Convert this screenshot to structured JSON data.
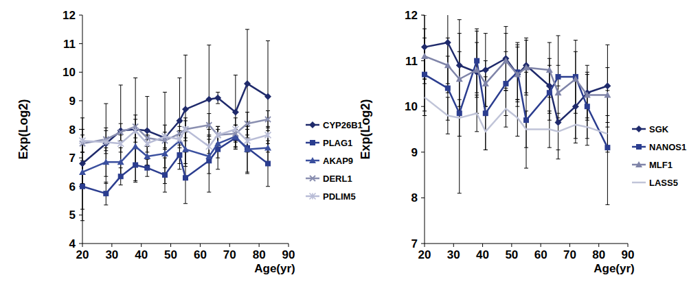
{
  "chart_data": [
    {
      "type": "line",
      "x_label": "Age(yr)",
      "y_label": "Exp(Log2)",
      "x": [
        20,
        28,
        33,
        38,
        42,
        48,
        53,
        55,
        63,
        66,
        72,
        76,
        83
      ],
      "xlim": [
        20,
        90
      ],
      "xticks": [
        20,
        30,
        40,
        50,
        60,
        70,
        80,
        90
      ],
      "ylim": [
        4,
        12
      ],
      "yticks": [
        4,
        5,
        6,
        7,
        8,
        9,
        10,
        11,
        12
      ],
      "grid": false,
      "legend": "right",
      "series": [
        {
          "name": "CYP26B1",
          "color": "#1f2a6b",
          "marker": "diamond",
          "values": [
            6.8,
            7.5,
            7.95,
            8.0,
            7.95,
            7.7,
            8.3,
            8.7,
            9.05,
            9.1,
            8.6,
            9.6,
            9.15
          ],
          "errors": [
            1.6,
            1.4,
            1.6,
            1.8,
            1.2,
            1.6,
            1.5,
            1.9,
            1.9,
            0.2,
            1.3,
            1.9,
            1.95
          ]
        },
        {
          "name": "PLAG1",
          "color": "#2b3d8f",
          "marker": "square",
          "values": [
            6.0,
            5.75,
            6.35,
            6.75,
            6.65,
            6.4,
            7.1,
            6.3,
            6.9,
            7.3,
            7.7,
            7.35,
            6.8
          ],
          "errors": [
            1.2,
            0.4,
            0.3,
            0.6,
            0.3,
            0.6,
            0.5,
            0.9,
            1.1,
            0.7,
            0.3,
            0.9,
            0.8
          ]
        },
        {
          "name": "AKAP9",
          "color": "#3a4f9e",
          "marker": "triangle",
          "values": [
            6.5,
            6.85,
            6.85,
            7.4,
            7.05,
            7.15,
            7.6,
            7.3,
            7.05,
            7.5,
            7.75,
            7.3,
            7.35
          ],
          "errors": [
            0.4,
            0.5,
            0.5,
            0.6,
            0.4,
            0.5,
            0.5,
            0.6,
            0.6,
            0.5,
            0.4,
            0.8,
            0.6
          ]
        },
        {
          "name": "DERL1",
          "color": "#8a8fb0",
          "marker": "x",
          "values": [
            7.5,
            7.65,
            7.9,
            8.1,
            7.7,
            7.6,
            7.85,
            8.0,
            8.15,
            7.8,
            7.85,
            8.2,
            8.35
          ],
          "errors": [
            0.3,
            0.4,
            0.3,
            0.4,
            0.3,
            0.3,
            0.4,
            0.3,
            0.4,
            0.3,
            0.3,
            0.4,
            0.3
          ]
        },
        {
          "name": "PDLIM5",
          "color": "#b8bcd6",
          "marker": "star",
          "values": [
            7.6,
            7.55,
            7.5,
            7.95,
            7.5,
            7.75,
            7.65,
            8.0,
            7.4,
            7.8,
            8.0,
            7.6,
            7.8
          ],
          "errors": [
            0.4,
            0.4,
            0.3,
            0.4,
            0.3,
            0.4,
            0.3,
            0.4,
            0.4,
            0.3,
            0.4,
            0.4,
            0.3
          ]
        }
      ]
    },
    {
      "type": "line",
      "x_label": "Age(yr)",
      "y_label": "Exp(Log2)",
      "x": [
        20,
        28,
        32,
        38,
        41,
        48,
        52,
        55,
        63,
        66,
        72,
        76,
        83
      ],
      "xlim": [
        20,
        90
      ],
      "xticks": [
        20,
        30,
        40,
        50,
        60,
        70,
        80,
        90
      ],
      "ylim": [
        7,
        12
      ],
      "yticks": [
        7,
        8,
        9,
        10,
        11,
        12
      ],
      "grid": false,
      "legend": "right",
      "series": [
        {
          "name": "SGK",
          "color": "#1f2a6b",
          "marker": "diamond",
          "values": [
            11.3,
            11.4,
            10.9,
            10.75,
            10.8,
            11.05,
            10.7,
            10.9,
            10.45,
            9.65,
            10.0,
            10.3,
            10.45
          ],
          "errors": [
            0.7,
            0.9,
            1.0,
            0.9,
            0.8,
            0.7,
            0.7,
            0.6,
            0.6,
            0.8,
            0.7,
            0.6,
            0.9
          ]
        },
        {
          "name": "NANOS1",
          "color": "#2b3d8f",
          "marker": "square",
          "values": [
            10.7,
            10.4,
            9.85,
            11.0,
            9.85,
            10.5,
            10.75,
            9.7,
            10.3,
            10.65,
            10.65,
            10.0,
            9.1
          ],
          "errors": [
            0.8,
            0.7,
            1.75,
            0.7,
            0.8,
            0.7,
            0.6,
            1.05,
            0.6,
            0.9,
            0.8,
            0.7,
            1.25
          ]
        },
        {
          "name": "MLF1",
          "color": "#7f84a8",
          "marker": "triangle",
          "values": [
            11.1,
            10.9,
            10.6,
            10.8,
            10.5,
            11.0,
            10.7,
            10.85,
            10.8,
            10.3,
            10.6,
            10.25,
            10.25
          ],
          "errors": [
            0.6,
            0.6,
            0.6,
            0.6,
            0.5,
            0.6,
            0.6,
            0.6,
            0.6,
            0.6,
            0.6,
            0.5,
            0.6
          ]
        },
        {
          "name": "LASS5",
          "color": "#c0c4d8",
          "marker": "none",
          "values": [
            10.2,
            9.8,
            9.75,
            9.85,
            9.45,
            9.95,
            9.75,
            9.5,
            9.5,
            9.45,
            9.6,
            9.55,
            9.4
          ],
          "errors": [
            0.4,
            0.4,
            0.4,
            0.4,
            0.4,
            0.4,
            0.4,
            0.4,
            0.4,
            0.4,
            0.4,
            0.4,
            0.4
          ]
        }
      ]
    }
  ]
}
